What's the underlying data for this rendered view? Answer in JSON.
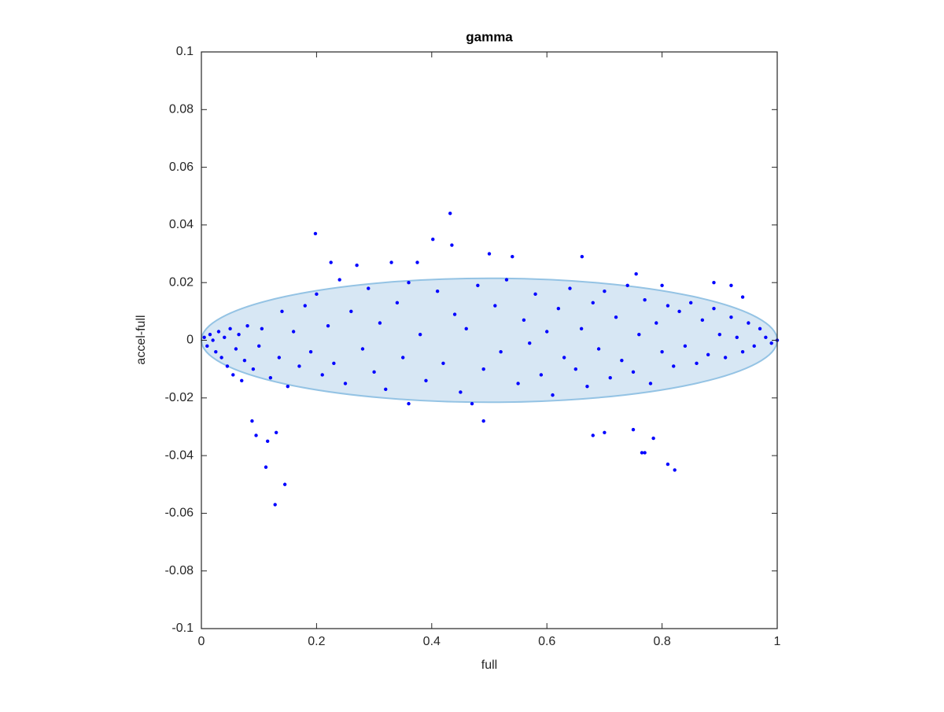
{
  "chart_data": {
    "type": "scatter",
    "title": "gamma",
    "x_label": "full",
    "y_label": "accel-full",
    "xlim": [
      0,
      1
    ],
    "ylim": [
      -0.1,
      0.1
    ],
    "xticks": [
      0,
      0.2,
      0.4,
      0.6,
      0.8,
      1
    ],
    "yticks": [
      -0.1,
      -0.08,
      -0.06,
      -0.04,
      -0.02,
      0,
      0.02,
      0.04,
      0.06,
      0.08,
      0.1
    ],
    "grid": false,
    "ellipse": {
      "center_x": 0.5,
      "center_y": 0,
      "radius_x": 0.5,
      "radius_y": 0.0215,
      "fill": "#d7e7f4",
      "stroke": "#94c3e4"
    },
    "series": [
      {
        "color": "#0000ff",
        "x": [
          0.198,
          0.432,
          0.402,
          0.128,
          0.145,
          0.112,
          0.822,
          0.81,
          0.77,
          0.765,
          0.49,
          0.661,
          0.54,
          0.5,
          0.225,
          0.27,
          0.33,
          0.375,
          0.435,
          0.088,
          0.095,
          0.115,
          0.13,
          0.68,
          0.7,
          0.75,
          0.785,
          0.755,
          0.8,
          0.89,
          0.92,
          0.94,
          0.36,
          0.47,
          0.005,
          0.01,
          0.015,
          0.02,
          0.025,
          0.03,
          0.035,
          0.04,
          0.045,
          0.05,
          0.055,
          0.06,
          0.065,
          0.07,
          0.075,
          0.08,
          0.09,
          0.1,
          0.105,
          0.12,
          0.135,
          0.14,
          0.15,
          0.16,
          0.17,
          0.18,
          0.19,
          0.2,
          0.21,
          0.22,
          0.23,
          0.24,
          0.25,
          0.26,
          0.28,
          0.29,
          0.3,
          0.31,
          0.32,
          0.34,
          0.35,
          0.36,
          0.38,
          0.39,
          0.41,
          0.42,
          0.44,
          0.45,
          0.46,
          0.48,
          0.49,
          0.51,
          0.52,
          0.53,
          0.55,
          0.56,
          0.57,
          0.58,
          0.59,
          0.6,
          0.61,
          0.62,
          0.63,
          0.64,
          0.65,
          0.66,
          0.67,
          0.68,
          0.69,
          0.7,
          0.71,
          0.72,
          0.73,
          0.74,
          0.75,
          0.76,
          0.77,
          0.78,
          0.79,
          0.8,
          0.81,
          0.82,
          0.83,
          0.84,
          0.85,
          0.86,
          0.87,
          0.88,
          0.89,
          0.9,
          0.91,
          0.92,
          0.93,
          0.94,
          0.95,
          0.96,
          0.97,
          0.98,
          0.99,
          1
        ],
        "values": [
          0.037,
          0.044,
          0.035,
          -0.057,
          -0.05,
          -0.044,
          -0.045,
          -0.043,
          -0.039,
          -0.039,
          -0.028,
          0.029,
          0.029,
          0.03,
          0.027,
          0.026,
          0.027,
          0.027,
          0.033,
          -0.028,
          -0.033,
          -0.035,
          -0.032,
          -0.033,
          -0.032,
          -0.031,
          -0.034,
          0.023,
          0.019,
          0.02,
          0.019,
          0.015,
          -0.022,
          -0.022,
          0.001,
          -0.002,
          0.002,
          0,
          -0.004,
          0.003,
          -0.006,
          0.001,
          -0.009,
          0.004,
          -0.012,
          -0.003,
          0.002,
          -0.014,
          -0.007,
          0.005,
          -0.01,
          -0.002,
          0.004,
          -0.013,
          -0.006,
          0.01,
          -0.016,
          0.003,
          -0.009,
          0.012,
          -0.004,
          0.016,
          -0.012,
          0.005,
          -0.008,
          0.021,
          -0.015,
          0.01,
          -0.003,
          0.018,
          -0.011,
          0.006,
          -0.017,
          0.013,
          -0.006,
          0.02,
          0.002,
          -0.014,
          0.017,
          -0.008,
          0.009,
          -0.018,
          0.004,
          0.019,
          -0.01,
          0.012,
          -0.004,
          0.021,
          -0.015,
          0.007,
          -0.001,
          0.016,
          -0.012,
          0.003,
          -0.019,
          0.011,
          -0.006,
          0.018,
          -0.01,
          0.004,
          -0.016,
          0.013,
          -0.003,
          0.017,
          -0.013,
          0.008,
          -0.007,
          0.019,
          -0.011,
          0.002,
          0.014,
          -0.015,
          0.006,
          -0.004,
          0.012,
          -0.009,
          0.01,
          -0.002,
          0.013,
          -0.008,
          0.007,
          -0.005,
          0.011,
          0.002,
          -0.006,
          0.008,
          0.001,
          -0.004,
          0.006,
          -0.002,
          0.004,
          0.001,
          -0.001,
          0
        ]
      }
    ]
  }
}
